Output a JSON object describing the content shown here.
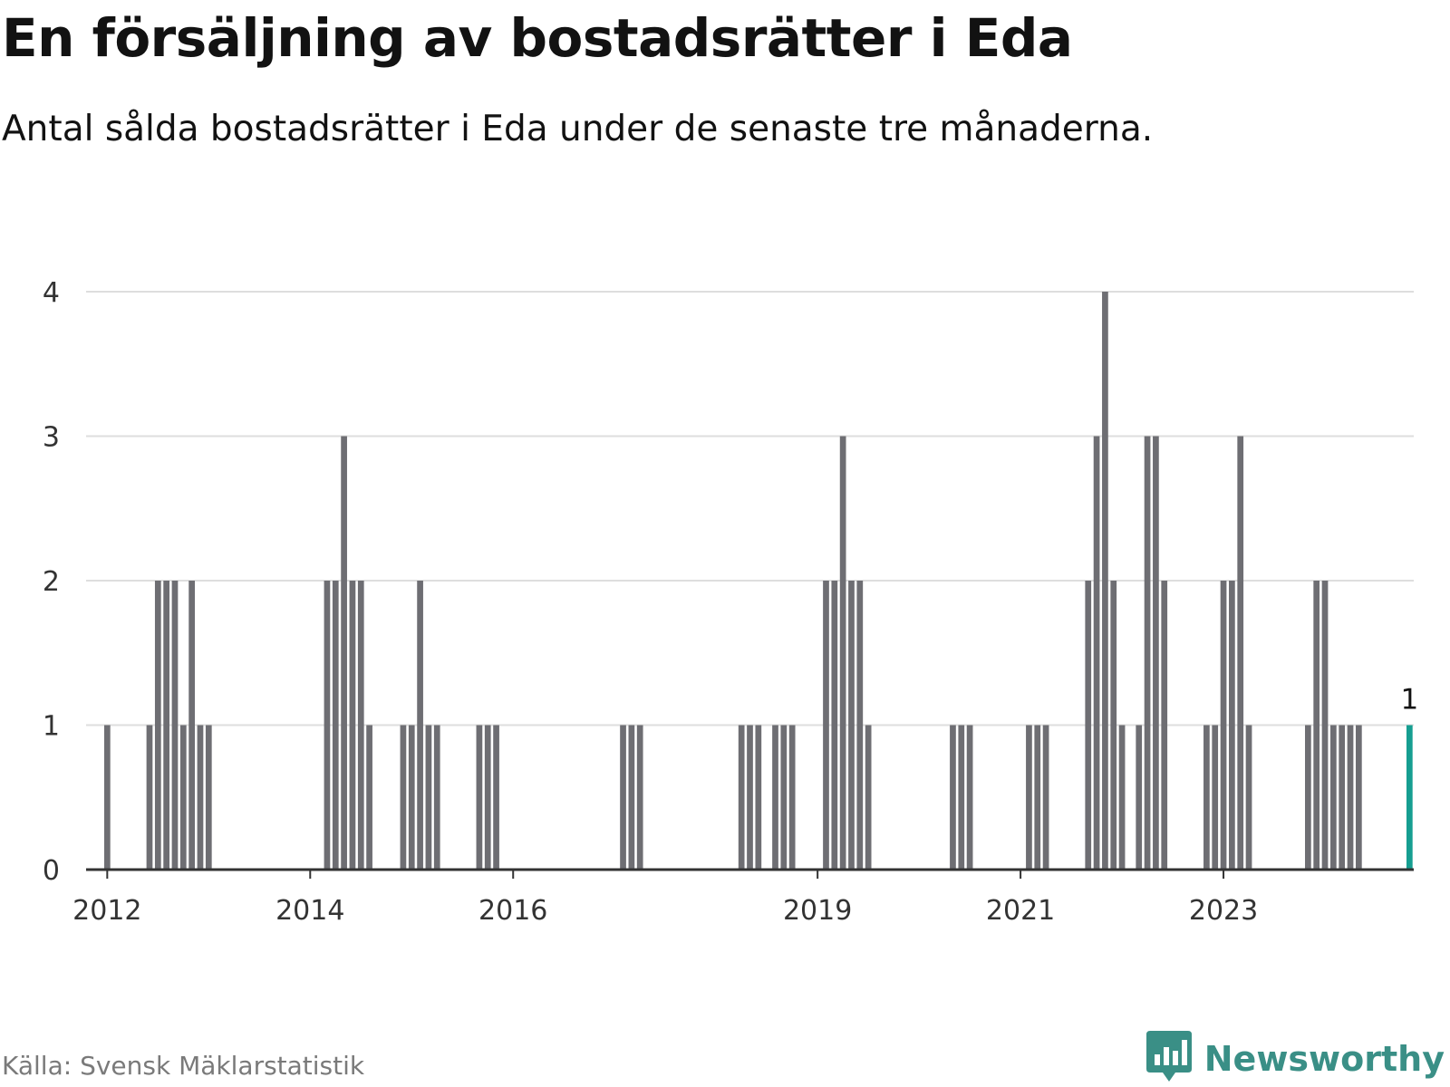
{
  "header": {
    "title": "En försäljning av bostadsrätter i Eda",
    "subtitle": "Antal sålda bostadsrätter i Eda under de senaste tre månaderna."
  },
  "footer": {
    "source": "Källa: Svensk Mäklarstatistik",
    "brand": "Newsworthy",
    "brand_icon": "bar-chart-speech-icon"
  },
  "colors": {
    "bar": "#6e6e73",
    "highlight": "#169e91",
    "brand": "#3a8f86"
  },
  "chart_data": {
    "type": "bar",
    "title": "En försäljning av bostadsrätter i Eda",
    "xlabel": "",
    "ylabel": "",
    "ylim": [
      0,
      4
    ],
    "yticks": [
      "0",
      "1",
      "2",
      "3",
      "4"
    ],
    "xticks": [
      "2012",
      "2014",
      "2016",
      "2019",
      "2021",
      "2023"
    ],
    "x_tick_positions": [
      "2012-01",
      "2014-01",
      "2016-01",
      "2019-01",
      "2021-01",
      "2023-01"
    ],
    "grid": true,
    "start_month": "2011-11",
    "series": [
      {
        "values": [
          0,
          0,
          1,
          0,
          0,
          0,
          0,
          1,
          2,
          2,
          2,
          1,
          2,
          1,
          1,
          0,
          0,
          0,
          0,
          0,
          0,
          0,
          0,
          0,
          0,
          0,
          0,
          0,
          2,
          2,
          3,
          2,
          2,
          1,
          0,
          0,
          0,
          1,
          1,
          2,
          1,
          1,
          0,
          0,
          0,
          0,
          1,
          1,
          1,
          0,
          0,
          0,
          0,
          0,
          0,
          0,
          0,
          0,
          0,
          0,
          0,
          0,
          0,
          1,
          1,
          1,
          0,
          0,
          0,
          0,
          0,
          0,
          0,
          0,
          0,
          0,
          0,
          1,
          1,
          1,
          0,
          1,
          1,
          1,
          0,
          0,
          0,
          2,
          2,
          3,
          2,
          2,
          1,
          0,
          0,
          0,
          0,
          0,
          0,
          0,
          0,
          0,
          1,
          1,
          1,
          0,
          0,
          0,
          0,
          0,
          0,
          1,
          1,
          1,
          0,
          0,
          0,
          0,
          2,
          3,
          4,
          2,
          1,
          0,
          1,
          3,
          3,
          2,
          0,
          0,
          0,
          0,
          1,
          1,
          2,
          2,
          3,
          1,
          0,
          0,
          0,
          0,
          0,
          0,
          1,
          2,
          2,
          1,
          1,
          1,
          1,
          0,
          0,
          0,
          0,
          0,
          1
        ]
      }
    ],
    "highlight_last": true,
    "annotations": [
      {
        "label": "1",
        "at": "last"
      }
    ]
  }
}
